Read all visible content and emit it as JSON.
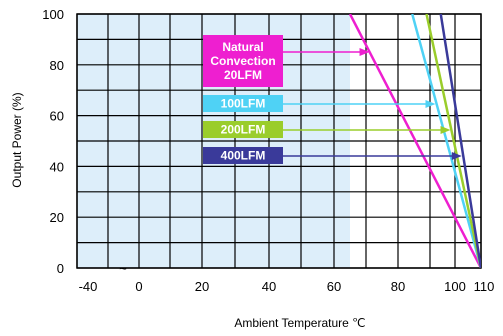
{
  "chart_data": {
    "type": "line",
    "title": "",
    "xlabel": "Ambient Temperature ℃",
    "ylabel": "Output Power  (%)",
    "x_ticks": [
      "-40",
      "0",
      "20",
      "40",
      "60",
      "80",
      "100",
      "110"
    ],
    "y_ticks": [
      "0",
      "20",
      "40",
      "60",
      "80",
      "100"
    ],
    "axis_break_mark": "~",
    "xlim": [
      -40,
      110
    ],
    "ylim": [
      0,
      100
    ],
    "grid": true,
    "shaded_region": {
      "x_from": -40,
      "x_to": 65,
      "color": "#ddeefa"
    },
    "series": [
      {
        "name": "Natural Convection 20LFM",
        "label_lines": [
          "Natural",
          "Convection",
          "20LFM"
        ],
        "color": "#ee1fd0",
        "x": [
          65,
          110
        ],
        "y": [
          100,
          0
        ]
      },
      {
        "name": "100LFM",
        "label_lines": [
          "100LFM"
        ],
        "color": "#4fd2f5",
        "x": [
          85,
          110
        ],
        "y": [
          100,
          0
        ]
      },
      {
        "name": "200LFM",
        "label_lines": [
          "200LFM"
        ],
        "color": "#9acd2b",
        "x": [
          90,
          110
        ],
        "y": [
          100,
          0
        ]
      },
      {
        "name": "400LFM",
        "label_lines": [
          "400LFM"
        ],
        "color": "#3a3a9a",
        "x": [
          95,
          110
        ],
        "y": [
          100,
          0
        ]
      }
    ]
  }
}
